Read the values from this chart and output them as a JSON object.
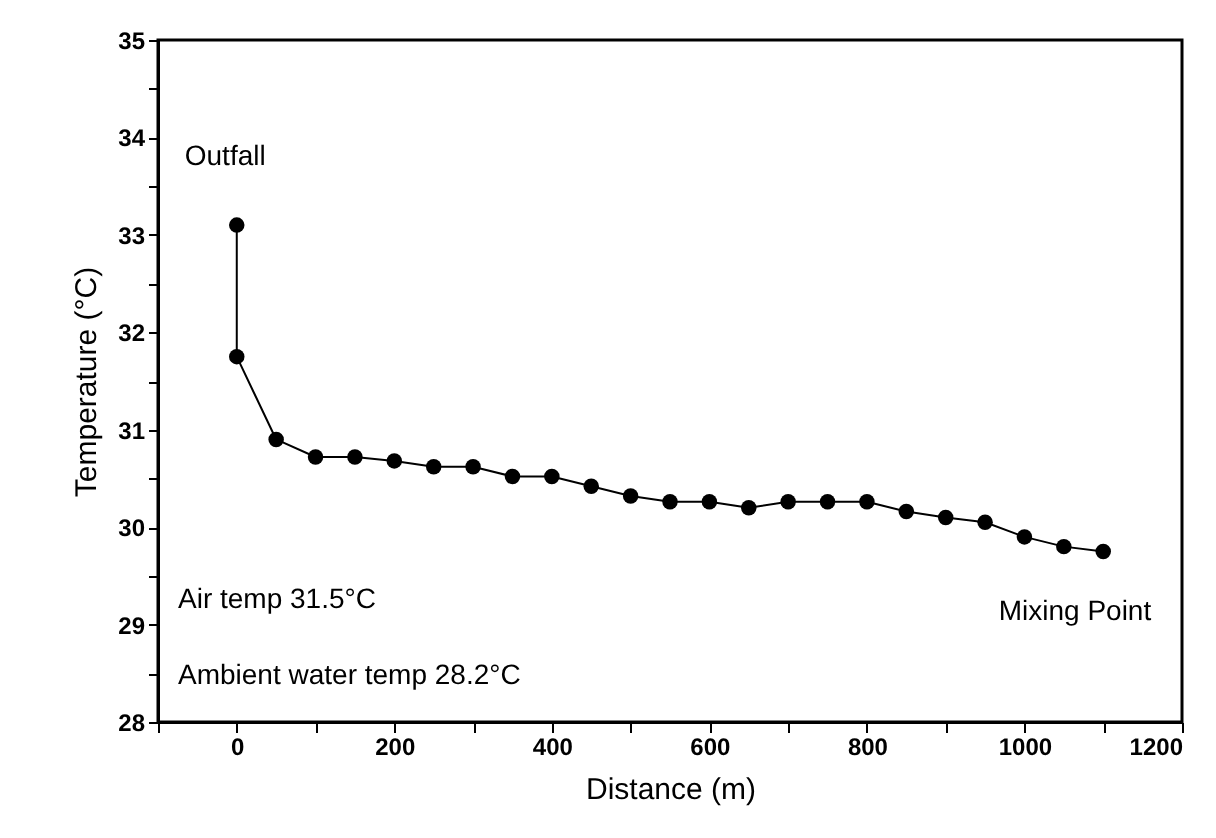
{
  "chart_data": {
    "type": "line",
    "xlabel": "Distance (m)",
    "ylabel": "Temperature (°C)",
    "x": [
      0,
      0,
      50,
      100,
      150,
      200,
      250,
      300,
      350,
      400,
      450,
      500,
      550,
      600,
      650,
      700,
      750,
      800,
      850,
      900,
      950,
      1000,
      1050,
      1100
    ],
    "series": [
      {
        "color": "#000000",
        "values": [
          33.1,
          31.75,
          30.9,
          30.72,
          30.72,
          30.68,
          30.62,
          30.62,
          30.52,
          30.52,
          30.42,
          30.32,
          30.26,
          30.26,
          30.2,
          30.26,
          30.26,
          30.26,
          30.16,
          30.1,
          30.05,
          29.9,
          29.8,
          29.75
        ]
      }
    ],
    "xlim": [
      -100,
      1200
    ],
    "xticks": [
      {
        "value": -100,
        "label": null
      },
      0,
      {
        "value": 100,
        "label": null
      },
      200,
      {
        "value": 300,
        "label": null
      },
      400,
      {
        "value": 500,
        "label": null
      },
      600,
      {
        "value": 700,
        "label": null
      },
      800,
      {
        "value": 900,
        "label": null
      },
      1000,
      {
        "value": 1100,
        "label": null
      },
      1200
    ],
    "ylim": [
      28,
      35
    ],
    "yticks": [
      28,
      {
        "value": 28.5,
        "label": null
      },
      29,
      {
        "value": 29.5,
        "label": null
      },
      30,
      {
        "value": 30.5,
        "label": null
      },
      31,
      {
        "value": 31.5,
        "label": null
      },
      32,
      {
        "value": 32.5,
        "label": null
      },
      33,
      {
        "value": 33.5,
        "label": null
      },
      34,
      {
        "value": 34.5,
        "label": null
      },
      35
    ],
    "marker": "circle",
    "line_style": "solid",
    "grid": false,
    "annotations": [
      {
        "text": "Outfall",
        "x": 0,
        "y": 33.1
      },
      {
        "text": "Mixing Point",
        "x": 1100,
        "y": 29.75
      },
      "Air temp 31.5°C",
      "Ambient water temp 28.2°C"
    ]
  }
}
